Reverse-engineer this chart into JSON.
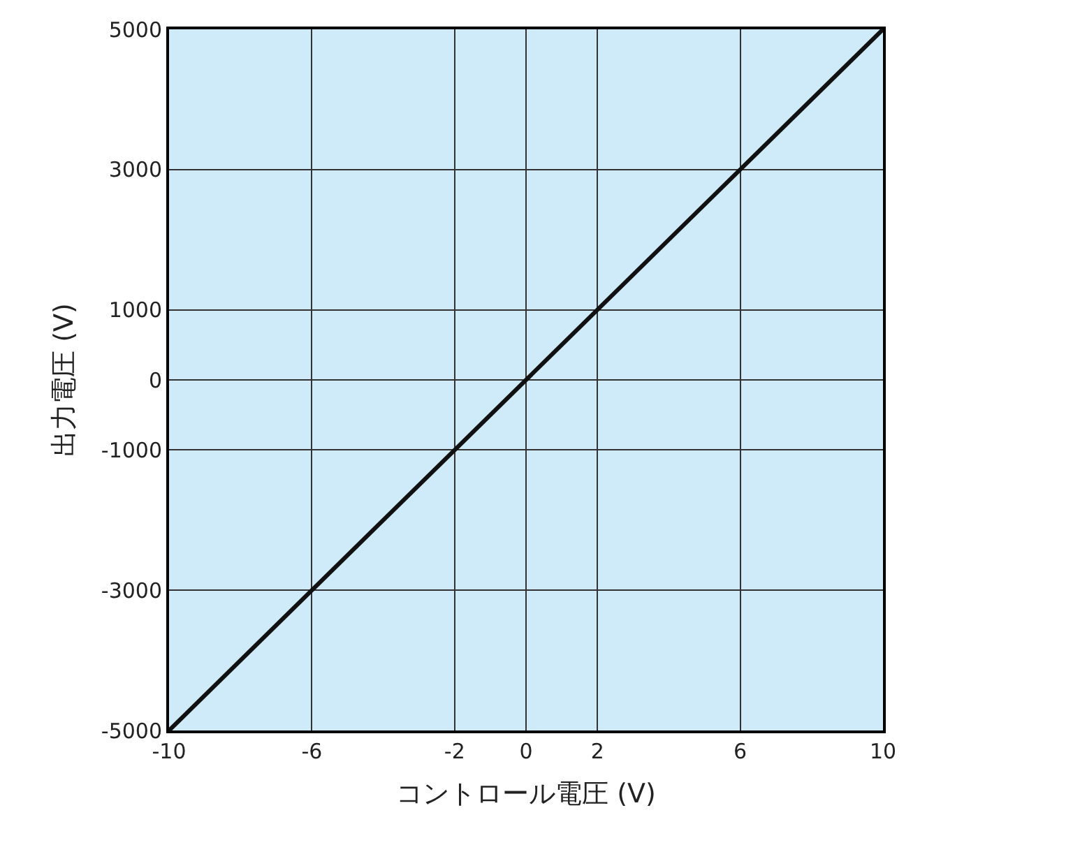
{
  "chart_data": {
    "type": "line",
    "xlabel": "コントロール電圧 (V)",
    "ylabel": "出力電圧 (V)",
    "x": [
      -10,
      10
    ],
    "series": [
      {
        "color": "#111111",
        "values": [
          -5000,
          5000
        ]
      }
    ],
    "xlim": [
      -10,
      10
    ],
    "xticks": [
      -10,
      -6,
      -2,
      0,
      2,
      6,
      10
    ],
    "ylim": [
      -5000,
      5000
    ],
    "yticks": [
      -5000,
      -3000,
      -1000,
      0,
      1000,
      3000,
      5000
    ],
    "grid": true,
    "marker": "none",
    "line_style": "solid"
  }
}
